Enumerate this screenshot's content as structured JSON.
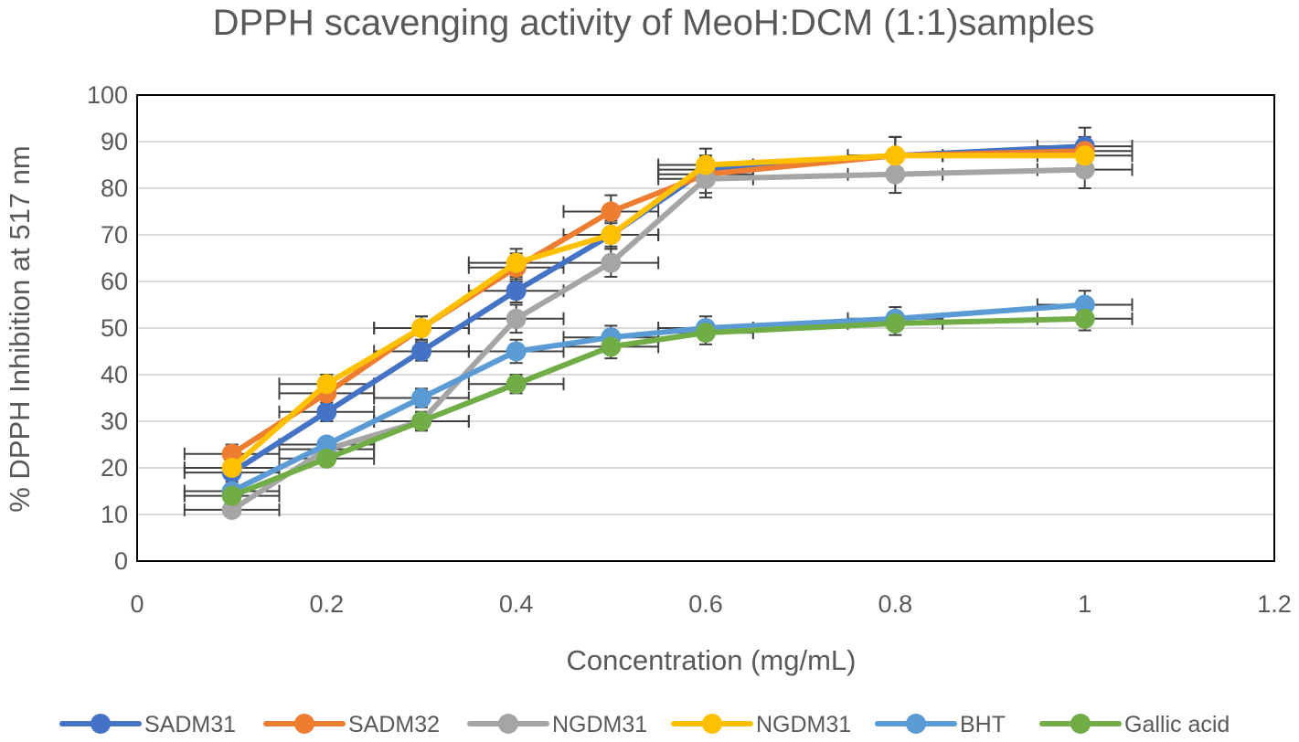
{
  "chart_data": {
    "type": "line",
    "title": "DPPH scavenging activity of MeoH:DCM (1:1)samples",
    "xlabel": "Concentration (mg/mL)",
    "ylabel": "% DPPH Inhibition at 517 nm",
    "xlim": [
      0,
      1.2
    ],
    "ylim": [
      0,
      100
    ],
    "x_ticks": [
      0,
      0.2,
      0.4,
      0.6,
      0.8,
      1,
      1.2
    ],
    "x_tick_labels": [
      "0",
      "0.2",
      "0.4",
      "0.6",
      "0.8",
      "1",
      "1.2"
    ],
    "y_ticks": [
      0,
      10,
      20,
      30,
      40,
      50,
      60,
      70,
      80,
      90,
      100
    ],
    "y_tick_labels": [
      "0",
      "10",
      "20",
      "30",
      "40",
      "50",
      "60",
      "70",
      "80",
      "90",
      "100"
    ],
    "grid": true,
    "legend_position": "bottom",
    "x": [
      0.1,
      0.2,
      0.3,
      0.4,
      0.5,
      0.6,
      0.8,
      1.0
    ],
    "error_bar_color": "#404040",
    "series": [
      {
        "name": "SADM31",
        "color": "#4472C4",
        "values": [
          19,
          32,
          45,
          58,
          70,
          84,
          87,
          89
        ],
        "errors": [
          2,
          2,
          2,
          2.5,
          2.5,
          3,
          4,
          4
        ]
      },
      {
        "name": "SADM32",
        "color": "#ED7D31",
        "values": [
          23,
          36,
          50,
          63,
          75,
          83,
          87,
          88
        ],
        "errors": [
          2,
          2.5,
          2.5,
          3,
          3.5,
          4,
          4,
          3
        ]
      },
      {
        "name": "NGDM31",
        "color": "#A5A5A5",
        "values": [
          11,
          24,
          30,
          52,
          64,
          82,
          83,
          84
        ],
        "errors": [
          1,
          2,
          2,
          3,
          3,
          4,
          4,
          4
        ]
      },
      {
        "name": "NGDM31",
        "color": "#FFC000",
        "values": [
          20,
          38,
          50,
          64,
          70,
          85,
          87,
          87
        ],
        "errors": [
          2,
          2,
          2.5,
          3,
          3,
          3.5,
          4,
          3
        ]
      },
      {
        "name": "BHT",
        "color": "#5B9BD5",
        "values": [
          15,
          25,
          35,
          45,
          48,
          50,
          52,
          55
        ],
        "errors": [
          1,
          1.5,
          2,
          2.5,
          2.5,
          2.5,
          2.5,
          3
        ]
      },
      {
        "name": "Gallic acid",
        "color": "#70AD47",
        "values": [
          14,
          22,
          30,
          38,
          46,
          49,
          51,
          52
        ],
        "errors": [
          1,
          1.5,
          2,
          2,
          2.5,
          2.5,
          2.5,
          2.5
        ]
      }
    ]
  }
}
